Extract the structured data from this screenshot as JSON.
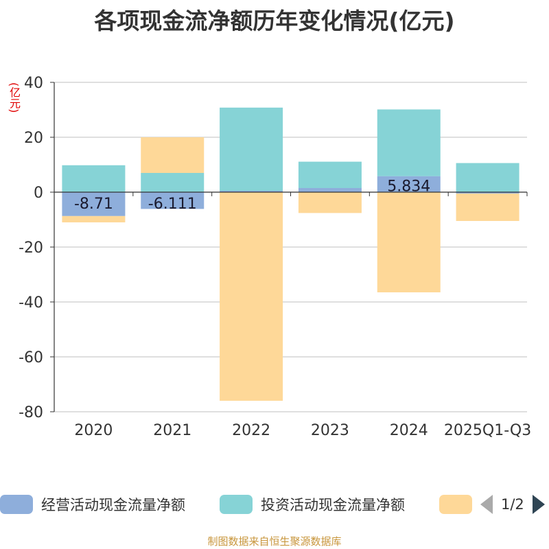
{
  "title": "各项现金流净额历年变化情况(亿元)",
  "unit_label": "(亿元)",
  "source": "制图数据来自恒生聚源数据库",
  "legend": {
    "items": [
      {
        "label": "经营活动现金流量净额",
        "color": "#8eaedb"
      },
      {
        "label": "投资活动现金流量净额",
        "color": "#86d3d6"
      },
      {
        "label": "",
        "color": "#fed898"
      }
    ],
    "page": "1/2"
  },
  "chart_data": {
    "type": "bar",
    "stacked": true,
    "title": "各项现金流净额历年变化情况(亿元)",
    "ylabel": "(亿元)",
    "ylim": [
      -80,
      40
    ],
    "yticks": [
      40,
      20,
      0,
      -20,
      -40,
      -60,
      -80
    ],
    "categories": [
      "2020",
      "2021",
      "2022",
      "2023",
      "2024",
      "2025Q1-Q3"
    ],
    "series": [
      {
        "name": "经营活动现金流量净额",
        "color": "#8eaedb",
        "values": [
          -8.71,
          -6.111,
          0.5,
          1.5,
          5.834,
          -0.5
        ],
        "labels": [
          "-8.71",
          "-6.111",
          "",
          "",
          "5.834",
          ""
        ]
      },
      {
        "name": "投资活动现金流量净额",
        "color": "#86d3d6",
        "values": [
          9.8,
          7.0,
          30.3,
          9.6,
          24.3,
          10.6
        ]
      },
      {
        "name": "",
        "color": "#fed898",
        "values": [
          -2.3,
          13.0,
          -76.0,
          -7.6,
          -36.5,
          -10.0
        ]
      }
    ]
  }
}
